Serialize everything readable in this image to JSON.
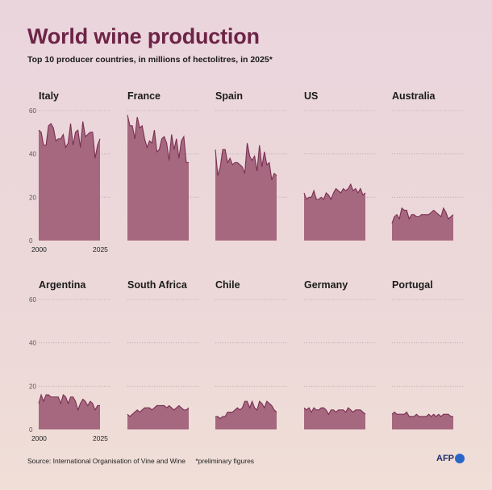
{
  "title": "World wine production",
  "subtitle": "Top 10 producer countries, in millions of hectolitres, in 2025*",
  "source": "Source: International Organisation of Vine and Wine",
  "note": "*preliminary figures",
  "logo": "AFP",
  "colors": {
    "fill": "#a6687f",
    "stroke": "#7a2f52",
    "title": "#6d2447",
    "grid": "#b9a5ac"
  },
  "chart_data": {
    "type": "area",
    "x_start": 2000,
    "x_end": 2025,
    "x_ticks": [
      "2000",
      "2025"
    ],
    "ylim": [
      0,
      60
    ],
    "y_ticks": [
      "0",
      "20",
      "40",
      "60"
    ],
    "grid": true,
    "series": [
      {
        "name": "Italy",
        "values": [
          51,
          50,
          44,
          44,
          53,
          54,
          52,
          46,
          47,
          47,
          49,
          43,
          45,
          54,
          44,
          50,
          51,
          43,
          55,
          48,
          49,
          50,
          50,
          38,
          44,
          47
        ]
      },
      {
        "name": "France",
        "values": [
          58,
          53,
          53,
          47,
          57,
          52,
          53,
          47,
          43,
          46,
          45,
          51,
          41,
          42,
          47,
          48,
          45,
          37,
          49,
          42,
          47,
          38,
          46,
          48,
          36,
          36
        ]
      },
      {
        "name": "Spain",
        "values": [
          42,
          30,
          34,
          42,
          42,
          36,
          38,
          35,
          36,
          36,
          35,
          34,
          31,
          45,
          39,
          37,
          39,
          32,
          44,
          34,
          41,
          35,
          36,
          28,
          31,
          30
        ]
      },
      {
        "name": "US",
        "values": [
          22,
          19,
          20,
          20,
          23,
          19,
          19,
          20,
          19,
          22,
          21,
          19,
          22,
          24,
          23,
          22,
          24,
          23,
          24,
          26,
          23,
          24,
          22,
          24,
          21,
          22
        ]
      },
      {
        "name": "Australia",
        "values": [
          8,
          11,
          12,
          10,
          15,
          14,
          14,
          10,
          12,
          12,
          11,
          11,
          12,
          12,
          12,
          12,
          13,
          14,
          13,
          12,
          11,
          15,
          13,
          10,
          11,
          12
        ]
      },
      {
        "name": "Argentina",
        "values": [
          12,
          16,
          13,
          16,
          16,
          15,
          15,
          15,
          15,
          12,
          16,
          15,
          12,
          15,
          15,
          13,
          9,
          12,
          14,
          13,
          11,
          13,
          12,
          9,
          11,
          11
        ]
      },
      {
        "name": "South Africa",
        "values": [
          7,
          6,
          7,
          8,
          9,
          8,
          9,
          10,
          10,
          10,
          9,
          10,
          11,
          11,
          11,
          11,
          10,
          11,
          10,
          9,
          10,
          11,
          10,
          9,
          9,
          10
        ]
      },
      {
        "name": "Chile",
        "values": [
          6,
          6,
          5,
          6,
          6,
          8,
          8,
          8,
          9,
          10,
          9,
          10,
          13,
          13,
          10,
          13,
          10,
          9,
          13,
          12,
          10,
          13,
          12,
          11,
          9,
          8
        ]
      },
      {
        "name": "Germany",
        "values": [
          10,
          9,
          10,
          8,
          10,
          9,
          9,
          10,
          10,
          9,
          7,
          9,
          9,
          8,
          9,
          9,
          9,
          8,
          10,
          9,
          8,
          9,
          9,
          9,
          8,
          7
        ]
      },
      {
        "name": "Portugal",
        "values": [
          7,
          8,
          7,
          7,
          7,
          7,
          8,
          6,
          6,
          6,
          7,
          6,
          6,
          6,
          6,
          7,
          6,
          7,
          6,
          7,
          6,
          7,
          7,
          7,
          6,
          6
        ]
      }
    ]
  }
}
